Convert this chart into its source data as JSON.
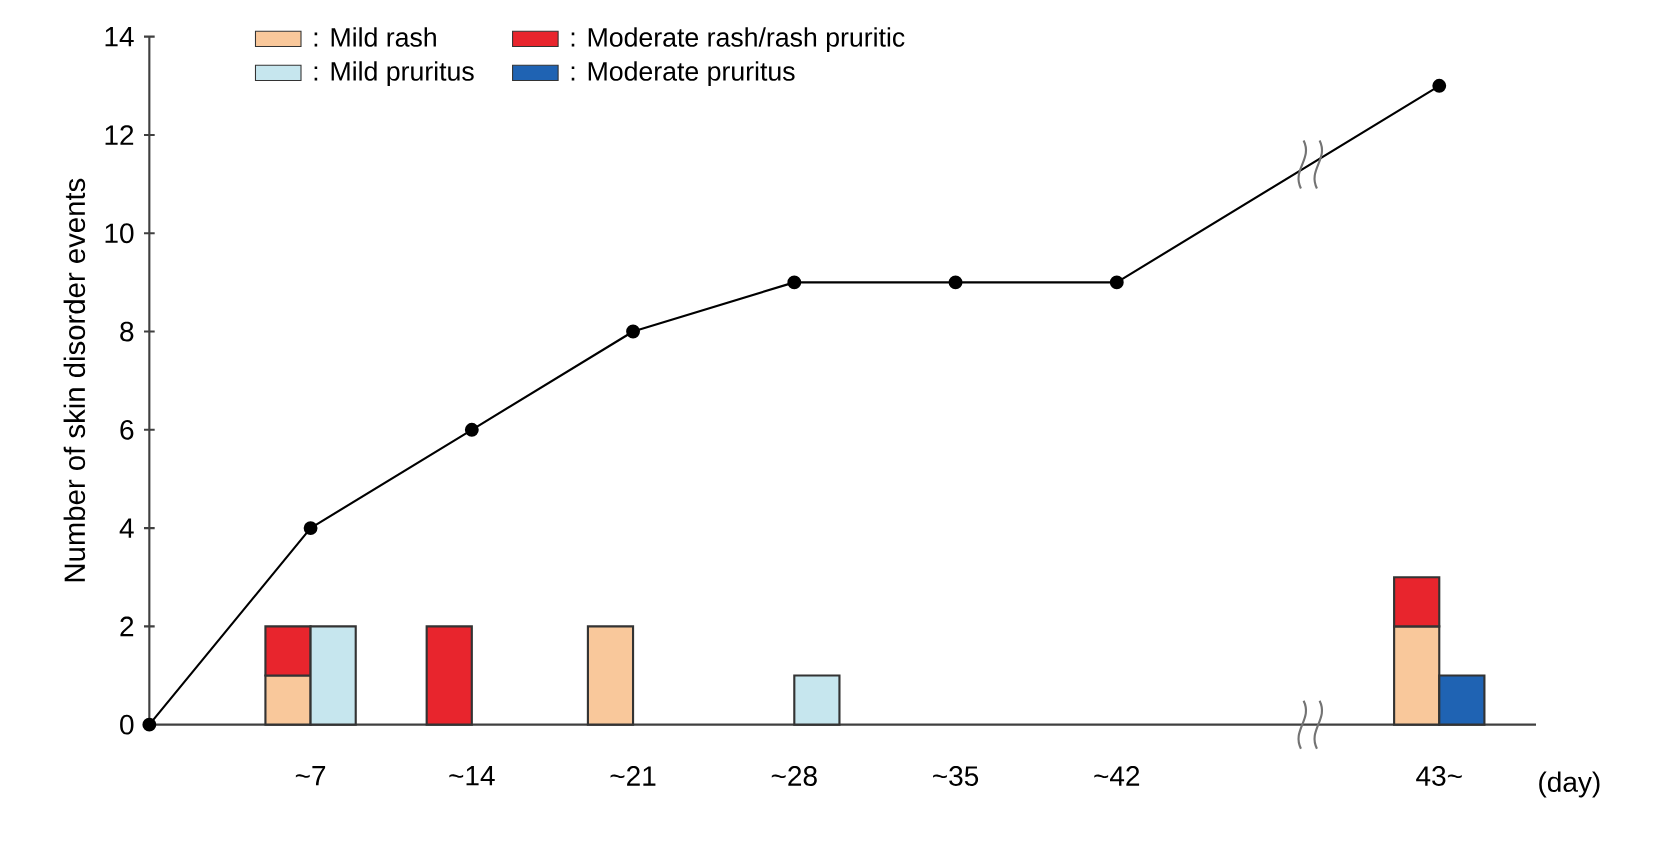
{
  "chart_data": {
    "type": "bar",
    "ylabel": "Number of skin disorder events",
    "xlabel": "(day)",
    "categories": [
      null,
      "~7",
      "~14",
      "~21",
      "~28",
      "~35",
      "~42",
      null,
      "43~"
    ],
    "ylim": [
      0,
      14
    ],
    "yticks": [
      0,
      2,
      4,
      6,
      8,
      10,
      12,
      14
    ],
    "legend": "top left",
    "series": [
      {
        "name": ": Mild rash",
        "color": "#f9c89b",
        "values": [
          0,
          1,
          0,
          2,
          0,
          0,
          0,
          null,
          2
        ]
      },
      {
        "name": ": Moderate rash/rash pruritic",
        "color": "#e8252d",
        "base": [
          null,
          1,
          0,
          null,
          null,
          null,
          null,
          null,
          2
        ],
        "values": [
          0,
          1,
          2,
          0,
          0,
          0,
          0,
          null,
          1
        ]
      },
      {
        "name": ": Mild pruritus",
        "color": "#c6e6ee",
        "values": [
          0,
          2,
          0,
          0,
          1,
          0,
          0,
          null,
          0
        ]
      },
      {
        "name": ": Moderate pruritus",
        "color": "#1f63b3",
        "base": [
          null,
          null,
          null,
          null,
          null,
          null,
          null,
          null,
          0
        ],
        "values": [
          0,
          0,
          0,
          0,
          0,
          0,
          0,
          null,
          1
        ]
      },
      {
        "type": "line",
        "color": "#000000",
        "marker": "circle",
        "values": [
          0,
          4,
          6,
          8,
          9,
          9,
          9,
          null,
          13
        ]
      }
    ]
  }
}
